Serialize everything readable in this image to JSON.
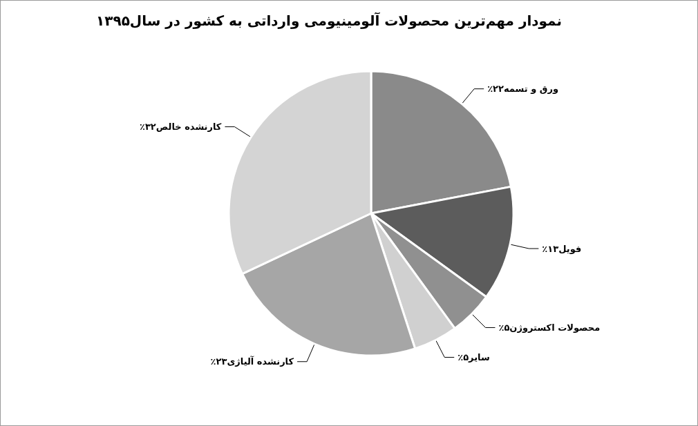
{
  "chart_data": {
    "type": "pie",
    "title": "نمودار مهم‌ترین محصولات آلومینیومی وارداتی به کشور در سال۱۳۹۵",
    "categories": [
      "ورق و تسمه",
      "فویل",
      "محصولات اکستروژن",
      "سایر",
      "کارنشده آلیاژی",
      "کارنشده خالص"
    ],
    "values": [
      22,
      13,
      5,
      5,
      23,
      32
    ],
    "value_labels": [
      "۲۲٪",
      "۱۳٪",
      "۵٪",
      "۵٪",
      "۲۳٪",
      "۳۲٪"
    ],
    "colors": [
      "#8a8a8a",
      "#5c5c5c",
      "#909090",
      "#d0d0d0",
      "#a6a6a6",
      "#d4d4d4"
    ]
  }
}
